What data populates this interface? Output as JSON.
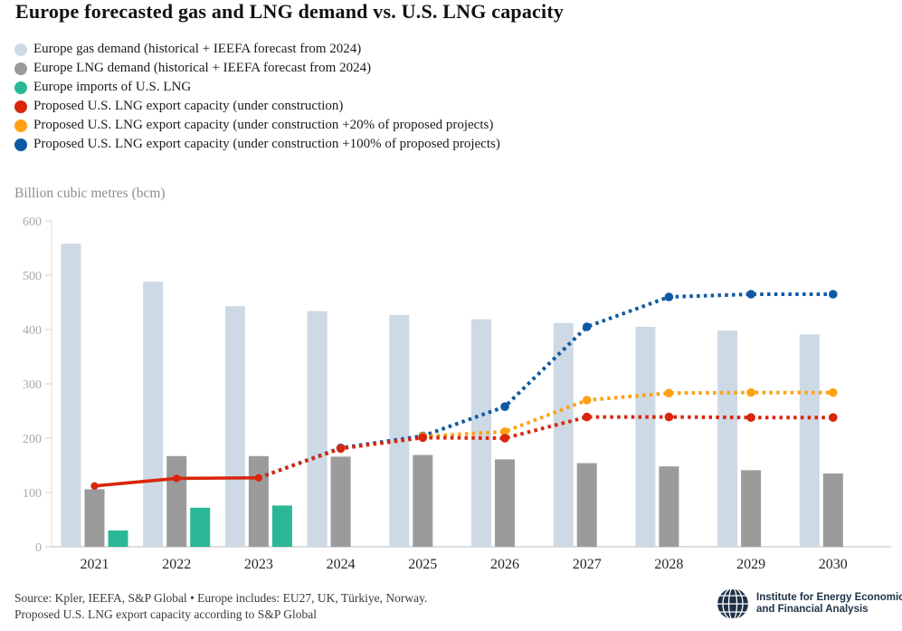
{
  "title": "Europe forecasted gas and LNG demand vs. U.S. LNG capacity",
  "axis_title": "Billion cubic metres (bcm)",
  "legend": [
    {
      "label": "Europe gas demand (historical + IEEFA forecast from 2024)",
      "color": "#cdd9e4"
    },
    {
      "label": "Europe LNG demand (historical + IEEFA forecast from 2024)",
      "color": "#9b9b9b"
    },
    {
      "label": "Europe imports of U.S. LNG",
      "color": "#2ab795"
    },
    {
      "label": "Proposed U.S. LNG export capacity (under construction)",
      "color": "#d8260d"
    },
    {
      "label": "Proposed U.S. LNG export capacity (under construction +20% of proposed projects)",
      "color": "#ffa115"
    },
    {
      "label": "Proposed U.S. LNG export capacity (under construction +100% of proposed projects)",
      "color": "#0f59a4"
    }
  ],
  "source": {
    "line1": "Source: Kpler, IEEFA, S&P Global • Europe includes: EU27, UK, Türkiye, Norway.",
    "line2": "Proposed U.S. LNG export capacity according to S&P Global"
  },
  "logo": {
    "line1": "Institute for Energy Economics",
    "line2": "and Financial Analysis"
  },
  "chart_data": {
    "type": "bar+line",
    "categories": [
      2021,
      2022,
      2023,
      2024,
      2025,
      2026,
      2027,
      2028,
      2029,
      2030
    ],
    "ylabel": "Billion cubic metres (bcm)",
    "ylim": [
      0,
      600
    ],
    "yticks": [
      0,
      100,
      200,
      300,
      400,
      500,
      600
    ],
    "grid": false,
    "legend_position": "top-left",
    "series": [
      {
        "name": "Europe gas demand (historical + IEEFA forecast from 2024)",
        "type": "bar",
        "color": "#cdd9e4",
        "values": [
          558,
          488,
          443,
          434,
          427,
          419,
          412,
          405,
          398,
          391
        ]
      },
      {
        "name": "Europe LNG demand (historical + IEEFA forecast from 2024)",
        "type": "bar",
        "color": "#9b9b9b",
        "values": [
          106,
          167,
          167,
          166,
          169,
          161,
          154,
          148,
          141,
          135
        ]
      },
      {
        "name": "Europe imports of U.S. LNG",
        "type": "bar",
        "color": "#2ab795",
        "values": [
          30,
          72,
          76,
          null,
          null,
          null,
          null,
          null,
          null,
          null
        ]
      },
      {
        "name": "Proposed U.S. LNG export capacity (under construction)",
        "type": "line",
        "color": "#d8260d",
        "line_style": "solid then dotted (forecast)",
        "solid_until_index": 2,
        "marker_from_index": 0,
        "values": [
          112,
          126,
          127,
          181,
          201,
          200,
          239,
          239,
          238,
          238
        ]
      },
      {
        "name": "Proposed U.S. LNG export capacity (under construction +20% of proposed projects)",
        "type": "line",
        "color": "#ffa115",
        "line_style": "dotted",
        "solid_until_index": null,
        "marker_from_index": 4,
        "values": [
          null,
          null,
          null,
          null,
          203,
          212,
          270,
          283,
          284,
          284
        ]
      },
      {
        "name": "Proposed U.S. LNG export capacity (under construction +100% of proposed projects)",
        "type": "line",
        "color": "#0f59a4",
        "line_style": "dotted",
        "solid_until_index": null,
        "marker_from_index": 3,
        "values": [
          null,
          null,
          127,
          182,
          204,
          258,
          405,
          460,
          465,
          465
        ]
      }
    ]
  }
}
